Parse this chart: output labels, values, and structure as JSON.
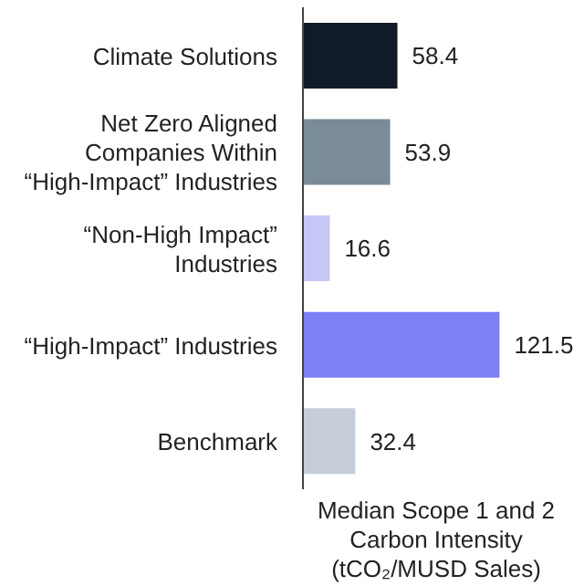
{
  "chart_data": {
    "type": "bar",
    "orientation": "horizontal",
    "categories": [
      "Climate Solutions",
      "Net Zero Aligned Companies Within “High-Impact” Industries",
      "“Non-High Impact” Industries",
      "“High-Impact” Industries",
      "Benchmark"
    ],
    "values": [
      58.4,
      53.9,
      16.6,
      121.5,
      32.4
    ],
    "colors": [
      "#111b27",
      "#7a8c99",
      "#c5c8f7",
      "#7b80f5",
      "#c5ced8"
    ],
    "data_labels": true,
    "xlabel": "Median Scope 1 and 2 Carbon Intensity (tCO₂/MUSD Sales)",
    "grid": false,
    "legend": false
  }
}
